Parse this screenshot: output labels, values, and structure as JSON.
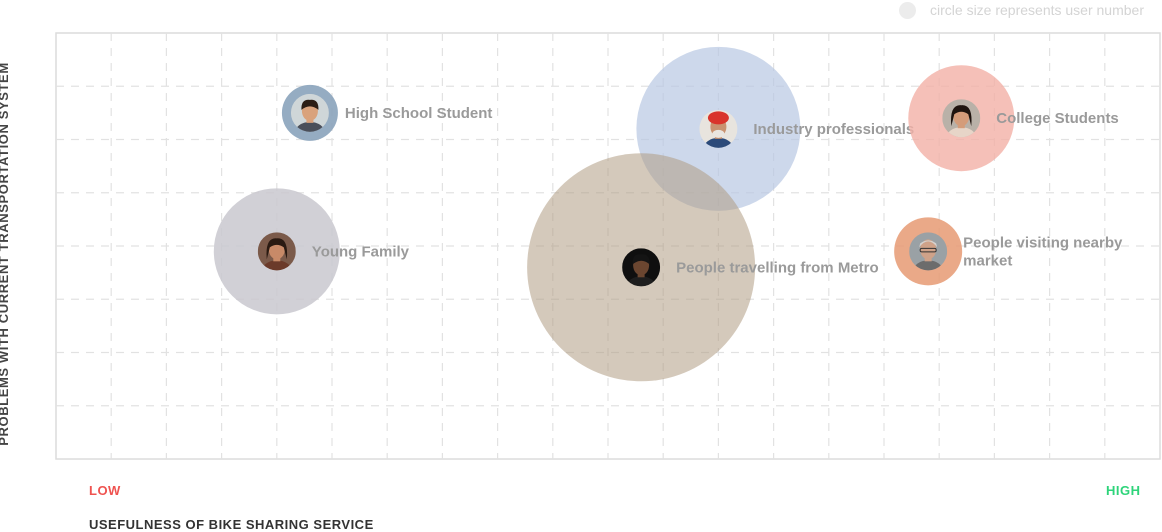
{
  "legend": {
    "text": "circle size represents user number"
  },
  "axes": {
    "y_title": "PROBLEMS WITH CURRENT TRANSPORTATION SYSTEM",
    "x_title": "USEFULNESS OF BIKE SHARING SERVICE",
    "x_low": "LOW",
    "x_high": "HIGH"
  },
  "colors": {
    "low": "#ef5350",
    "high": "#2ed47a",
    "grid": "#e2e2e2"
  },
  "chart_data": {
    "type": "scatter",
    "title": "",
    "xlabel": "USEFULNESS OF BIKE SHARING SERVICE",
    "ylabel": "PROBLEMS WITH CURRENT TRANSPORTATION SYSTEM",
    "xlim": [
      0,
      20
    ],
    "ylim": [
      0,
      8
    ],
    "grid": true,
    "legend_position": "top-right",
    "size_meaning": "user number",
    "series": [
      {
        "name": "High School Student",
        "label_lines": [
          "High School Student"
        ],
        "x": 4.6,
        "y": 6.5,
        "size": 28,
        "color": "#8aa3bb",
        "alpha": 0.9,
        "avatar": "teen"
      },
      {
        "name": "Young Family",
        "label_lines": [
          "Young Family"
        ],
        "x": 4.0,
        "y": 3.9,
        "size": 63,
        "color": "#c9c8cf",
        "alpha": 0.85,
        "avatar": "woman"
      },
      {
        "name": "Industry professionals",
        "label_lines": [
          "Industry professionals"
        ],
        "x": 12.0,
        "y": 6.2,
        "size": 82,
        "color": "#b8c8e2",
        "alpha": 0.7,
        "avatar": "turban"
      },
      {
        "name": "People travelling from Metro",
        "label_lines": [
          "People travelling from Metro"
        ],
        "x": 10.6,
        "y": 3.6,
        "size": 114,
        "color": "#b19d83",
        "alpha": 0.55,
        "avatar": "man"
      },
      {
        "name": "College Students",
        "label_lines": [
          "College Students"
        ],
        "x": 16.4,
        "y": 6.4,
        "size": 53,
        "color": "#f2b0a6",
        "alpha": 0.8,
        "avatar": "girl"
      },
      {
        "name": "People visiting nearby market",
        "label_lines": [
          "People visiting nearby",
          "market"
        ],
        "x": 15.8,
        "y": 3.9,
        "size": 34,
        "color": "#e69a73",
        "alpha": 0.85,
        "avatar": "elder"
      }
    ]
  }
}
